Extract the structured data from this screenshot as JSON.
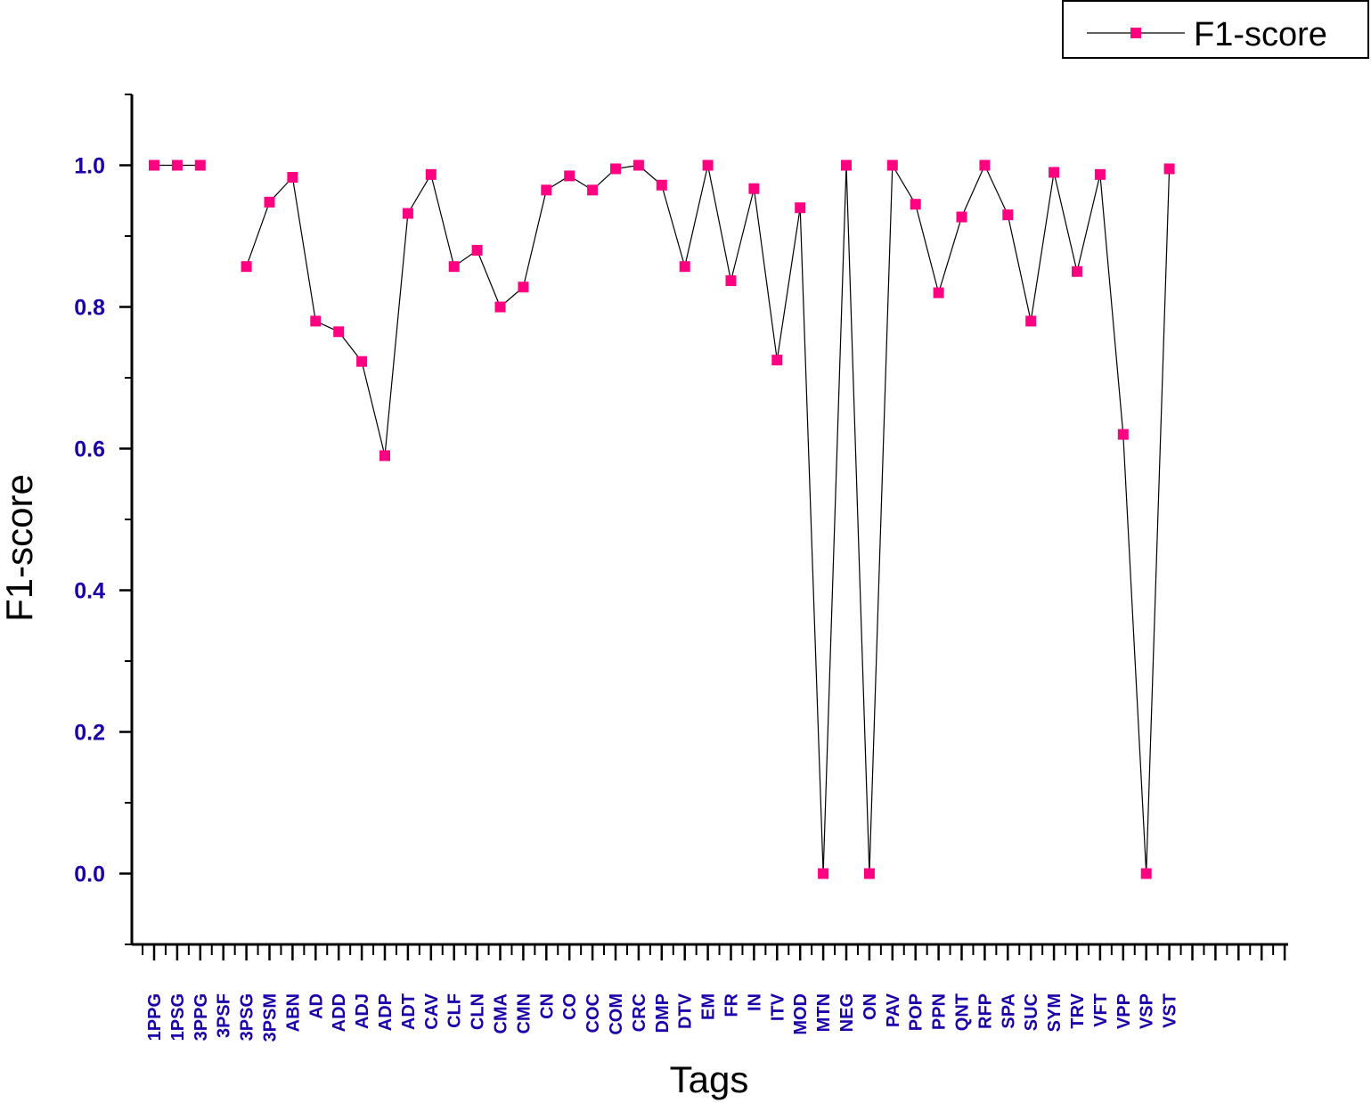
{
  "chart_data": {
    "type": "line",
    "xlabel": "Tags",
    "ylabel": "F1-score",
    "ylim": [
      -0.1,
      1.1
    ],
    "y_ticks": [
      "0.0",
      "0.2",
      "0.4",
      "0.6",
      "0.8",
      "1.0"
    ],
    "grid": false,
    "legend_position": "top-right",
    "categories": [
      "1PPG",
      "1PSG",
      "3PPG",
      "3PSF",
      "3PSG",
      "3PSM",
      "ABN",
      "AD",
      "ADD",
      "ADJ",
      "ADP",
      "ADT",
      "CAV",
      "CLF",
      "CLN",
      "CMA",
      "CMN",
      "CN",
      "CO",
      "COC",
      "COM",
      "CRC",
      "DMP",
      "DTV",
      "EM",
      "FR",
      "IN",
      "ITV",
      "MOD",
      "MTN",
      "NEG",
      "ON",
      "PAV",
      "POP",
      "PPN",
      "QNT",
      "RFP",
      "SPA",
      "SUC",
      "SYM",
      "TRV",
      "VFT",
      "VPP",
      "VSP",
      "VST"
    ],
    "series": [
      {
        "name": "F1-score",
        "values": [
          1.0,
          1.0,
          1.0,
          null,
          0.857,
          0.948,
          0.983,
          0.78,
          0.765,
          0.723,
          0.59,
          0.932,
          0.987,
          0.857,
          0.88,
          0.8,
          0.828,
          0.965,
          0.985,
          0.965,
          0.995,
          1.0,
          0.972,
          0.857,
          1.0,
          0.837,
          0.967,
          0.725,
          0.94,
          0.0,
          1.0,
          0.0,
          1.0,
          0.945,
          0.82,
          0.927,
          1.0,
          0.93,
          0.78,
          0.99,
          0.85,
          0.987,
          0.62,
          0.0,
          0.995
        ]
      }
    ]
  },
  "colors": {
    "marker": "#ff0080",
    "line": "#000000",
    "tick_label": "#1a00a8",
    "axis": "#000000"
  }
}
